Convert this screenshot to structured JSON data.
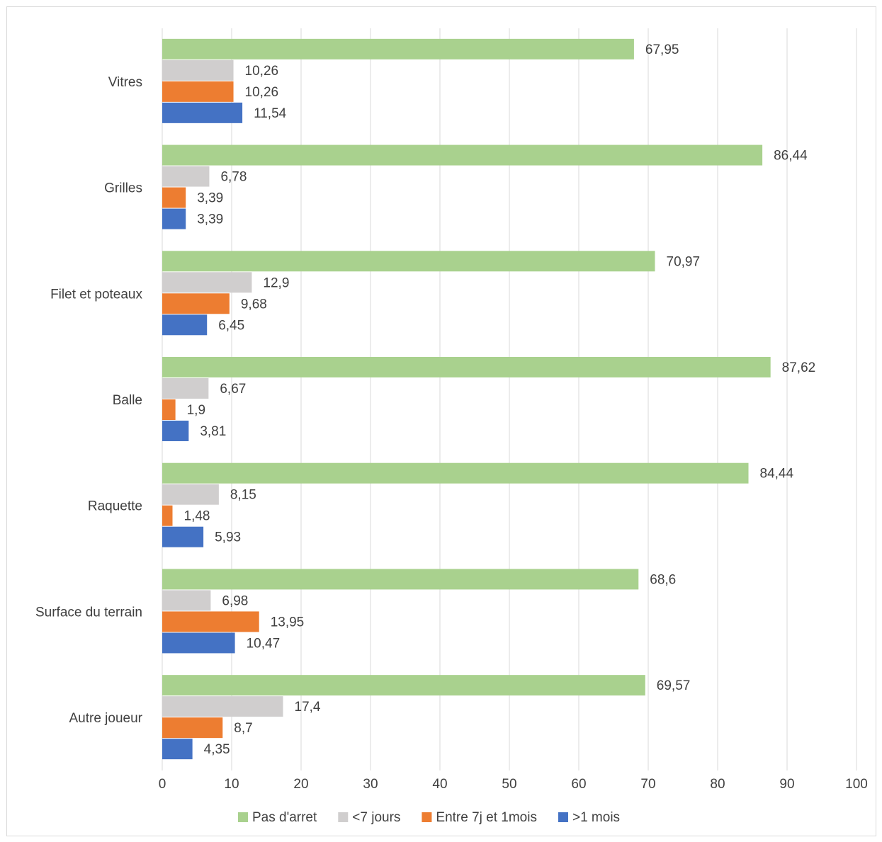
{
  "chart_data": {
    "type": "bar",
    "orientation": "horizontal",
    "categories": [
      "Vitres",
      "Grilles",
      "Filet et poteaux",
      "Balle",
      "Raquette",
      "Surface du terrain",
      "Autre joueur"
    ],
    "series": [
      {
        "name": "Pas d'arret",
        "color": "#a9d18e",
        "values": [
          67.95,
          86.44,
          70.97,
          87.62,
          84.44,
          68.6,
          69.57
        ],
        "labels": [
          "67,95",
          "86,44",
          "70,97",
          "87,62",
          "84,44",
          "68,6",
          "69,57"
        ]
      },
      {
        "name": "<7 jours",
        "color": "#d0cece",
        "values": [
          10.26,
          6.78,
          12.9,
          6.67,
          8.15,
          6.98,
          17.4
        ],
        "labels": [
          "10,26",
          "6,78",
          "12,9",
          "6,67",
          "8,15",
          "6,98",
          "17,4"
        ]
      },
      {
        "name": "Entre 7j et 1mois",
        "color": "#ed7d31",
        "values": [
          10.26,
          3.39,
          9.68,
          1.9,
          1.48,
          13.95,
          8.7
        ],
        "labels": [
          "10,26",
          "3,39",
          "9,68",
          "1,9",
          "1,48",
          "13,95",
          "8,7"
        ]
      },
      {
        "name": ">1 mois",
        "color": "#4472c4",
        "values": [
          11.54,
          3.39,
          6.45,
          3.81,
          5.93,
          10.47,
          4.35
        ],
        "labels": [
          "11,54",
          "3,39",
          "6,45",
          "3,81",
          "5,93",
          "10,47",
          "4,35"
        ]
      }
    ],
    "xlim": [
      0,
      100
    ],
    "xticks": [
      "0",
      "10",
      "20",
      "30",
      "40",
      "50",
      "60",
      "70",
      "80",
      "90",
      "100"
    ],
    "grid": true,
    "legend_position": "bottom"
  }
}
